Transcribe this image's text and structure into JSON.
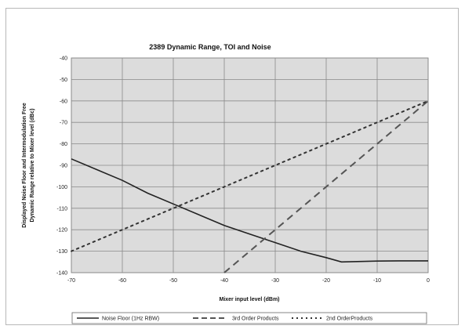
{
  "chart_data": {
    "type": "line",
    "title": "2389 Dynamic Range, TOI and Noise",
    "xlabel": "Mixer input level (dBm)",
    "ylabel_lines": [
      "Displayed Noise Floor and Intermodulation Free",
      "Dynamic Range relative to Mixer level (dBc)"
    ],
    "xlim": [
      -70,
      0
    ],
    "ylim": [
      -140,
      -40
    ],
    "x_ticks": [
      "-70",
      "-60",
      "-50",
      "-40",
      "-30",
      "-20",
      "-10",
      "0"
    ],
    "y_ticks": [
      "-40",
      "-50",
      "-60",
      "-70",
      "-80",
      "-90",
      "-100",
      "-110",
      "-120",
      "-130",
      "-140"
    ],
    "grid": true,
    "legend_position": "bottom",
    "series": [
      {
        "name": "Noise Floor (1Hz RBW)",
        "color": "#222222",
        "style": "solid",
        "points": [
          [
            -70,
            -87
          ],
          [
            -65,
            -92
          ],
          [
            -60,
            -97
          ],
          [
            -55,
            -103
          ],
          [
            -50,
            -108
          ],
          [
            -45,
            -113
          ],
          [
            -40,
            -118
          ],
          [
            -35,
            -122
          ],
          [
            -30,
            -126
          ],
          [
            -25,
            -130
          ],
          [
            -20,
            -133
          ],
          [
            -17,
            -135
          ],
          [
            -10,
            -134.6
          ],
          [
            -5,
            -134.5
          ],
          [
            0,
            -134.5
          ]
        ]
      },
      {
        "name": "3rd Order Products",
        "color": "#555555",
        "style": "dash",
        "points": [
          [
            -40,
            -140
          ],
          [
            -30,
            -120
          ],
          [
            -20,
            -100
          ],
          [
            -10,
            -80
          ],
          [
            0,
            -60
          ]
        ]
      },
      {
        "name": "2nd OrderProducts",
        "color": "#333333",
        "style": "dot",
        "points": [
          [
            -70,
            -130
          ],
          [
            -60,
            -120
          ],
          [
            -50,
            -110
          ],
          [
            -40,
            -100
          ],
          [
            -30,
            -90
          ],
          [
            -20,
            -80
          ],
          [
            -10,
            -70
          ],
          [
            0,
            -60
          ]
        ]
      }
    ]
  }
}
